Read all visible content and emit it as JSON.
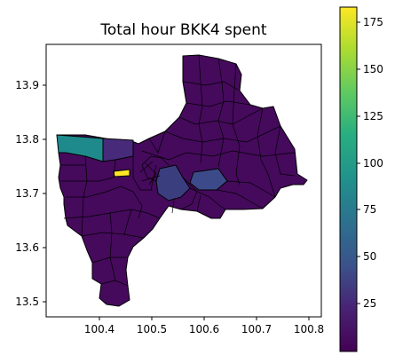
{
  "chart_data": {
    "type": "choropleth",
    "title": "Total hour BKK4 spent",
    "xlabel": "",
    "ylabel": "",
    "xlim": [
      100.3,
      100.82
    ],
    "ylim": [
      13.47,
      14.0
    ],
    "xticks": [
      100.4,
      100.5,
      100.6,
      100.7,
      100.8
    ],
    "yticks": [
      13.5,
      13.6,
      13.7,
      13.8,
      13.9
    ],
    "xtick_labels": [
      "100.4",
      "100.5",
      "100.6",
      "100.7",
      "100.8"
    ],
    "ytick_labels": [
      "13.5",
      "13.6",
      "13.7",
      "13.8",
      "13.9"
    ],
    "colorbar": {
      "colormap": "viridis",
      "range": [
        0,
        183
      ],
      "ticks": [
        25,
        50,
        75,
        100,
        125,
        150,
        175
      ],
      "tick_labels": [
        "25",
        "50",
        "75",
        "100",
        "125",
        "150",
        "175"
      ]
    },
    "highlighted_regions": [
      {
        "value": 100
      },
      {
        "value": 183
      },
      {
        "value": 30
      }
    ],
    "base_value": 8
  },
  "colors": {
    "viridis_low": "#440154",
    "viridis_mid": "#21918c",
    "viridis_high": "#fde725",
    "district_dark": "#450a5c"
  }
}
